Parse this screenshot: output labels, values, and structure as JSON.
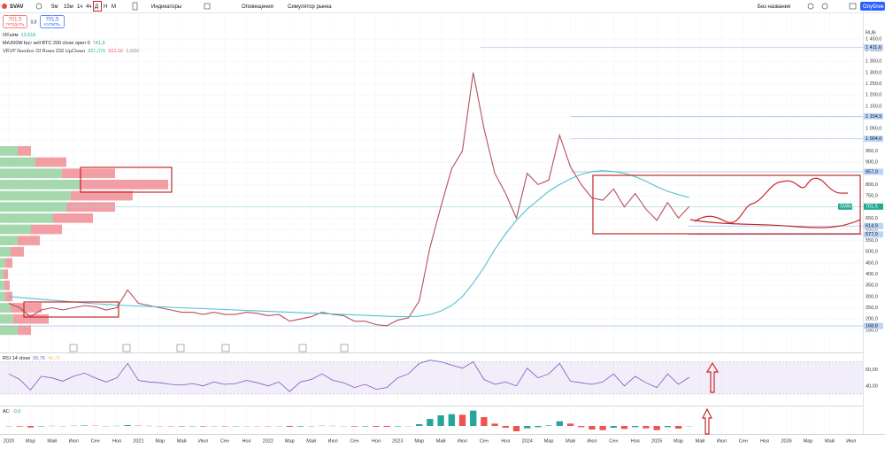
{
  "toolbar": {
    "symbol": "SVAV",
    "intervals": [
      "5м",
      "15м",
      "1ч",
      "4ч",
      "Д",
      "Н",
      "М"
    ],
    "indicators": "Индикаторы",
    "alerts": "Оповещения",
    "replay": "Симулятор рынка",
    "layout_name": "Без названия",
    "publish": "Опублик"
  },
  "order": {
    "sell_price": "701,5",
    "sell_label": "ПРОДАТЬ",
    "spread": "0,0",
    "buy_price": "701,5",
    "buy_label": "КУПИТЬ"
  },
  "legends": [
    {
      "name": "Объём",
      "values": [
        "12,61К"
      ],
      "value_colors": [
        "#26a69a"
      ]
    },
    {
      "name": "MA200W buy sell BTC 200 close open 0",
      "values": [
        "741,9"
      ],
      "value_colors": [
        "#26a69a"
      ]
    },
    {
      "name": "VRVP Number Of Rows 250 Up/Down",
      "values": [
        "825,37К",
        "831,5К",
        "1,66М"
      ],
      "value_colors": [
        "#26a69a",
        "#ef5350",
        "#787b86"
      ]
    },
    {
      "name": "RSI 14 close",
      "values": [
        "50,76",
        "46,76"
      ],
      "value_colors": [
        "#7e57c2",
        "#f7c548"
      ]
    },
    {
      "name": "AO",
      "values": [
        "-0,0"
      ],
      "value_colors": [
        "#26a69a"
      ]
    }
  ],
  "chart_data": [
    {
      "type": "line",
      "currency": "RUB",
      "grid": true,
      "x": [
        "2020-01",
        "2020-02",
        "2020-03",
        "2020-04",
        "2020-05",
        "2020-06",
        "2020-07",
        "2020-08",
        "2020-09",
        "2020-10",
        "2020-11",
        "2020-12",
        "2021-01",
        "2021-02",
        "2021-03",
        "2021-04",
        "2021-05",
        "2021-06",
        "2021-07",
        "2021-08",
        "2021-09",
        "2021-10",
        "2021-11",
        "2021-12",
        "2022-01",
        "2022-02",
        "2022-03",
        "2022-04",
        "2022-05",
        "2022-06",
        "2022-07",
        "2022-08",
        "2022-09",
        "2022-10",
        "2022-11",
        "2022-12",
        "2023-01",
        "2023-02",
        "2023-03",
        "2023-04",
        "2023-05",
        "2023-06",
        "2023-07",
        "2023-08",
        "2023-09",
        "2023-10",
        "2023-11",
        "2023-12",
        "2024-01",
        "2024-02",
        "2024-03",
        "2024-04",
        "2024-05",
        "2024-06",
        "2024-07",
        "2024-08",
        "2024-09",
        "2024-10",
        "2024-11",
        "2024-12",
        "2025-01",
        "2025-02",
        "2025-03",
        "2025-04"
      ],
      "xlim": [
        "2020-01",
        "2026-08"
      ],
      "series": [
        {
          "color": "#b4505a",
          "values": [
            270,
            250,
            210,
            240,
            250,
            240,
            250,
            260,
            255,
            240,
            250,
            330,
            270,
            260,
            250,
            240,
            230,
            230,
            220,
            230,
            220,
            220,
            230,
            225,
            215,
            220,
            190,
            200,
            210,
            230,
            220,
            215,
            190,
            190,
            175,
            170,
            195,
            205,
            280,
            520,
            700,
            870,
            950,
            1300,
            1050,
            850,
            760,
            650,
            850,
            800,
            820,
            1020,
            880,
            800,
            740,
            730,
            780,
            700,
            760,
            690,
            640,
            720,
            650,
            701.5
          ]
        },
        {
          "color": "#4fc3cf",
          "values": [
            300,
            296,
            292,
            288,
            284,
            280,
            276,
            272,
            268,
            265,
            262,
            260,
            258,
            256,
            254,
            252,
            250,
            248,
            246,
            244,
            242,
            240,
            238,
            236,
            234,
            232,
            230,
            228,
            226,
            224,
            222,
            220,
            218,
            216,
            214,
            212,
            210,
            210,
            212,
            220,
            235,
            260,
            300,
            360,
            430,
            510,
            580,
            640,
            690,
            730,
            770,
            800,
            825,
            845,
            858,
            862,
            858,
            850,
            835,
            815,
            790,
            770,
            755,
            741.9
          ]
        }
      ],
      "ylim": [
        90,
        1505
      ],
      "yticks": [
        {
          "value": 1450,
          "label": "1 450,0"
        },
        {
          "value": 1400,
          "label": "1 400,0"
        },
        {
          "value": 1350,
          "label": "1 350,0"
        },
        {
          "value": 1300,
          "label": "1 300,0"
        },
        {
          "value": 1250,
          "label": "1 250,0"
        },
        {
          "value": 1200,
          "label": "1 200,0"
        },
        {
          "value": 1150,
          "label": "1 150,0"
        },
        {
          "value": 1100,
          "label": "1 100,0"
        },
        {
          "value": 1050,
          "label": "1 050,0"
        },
        {
          "value": 1000,
          "label": "1 000,0"
        },
        {
          "value": 950,
          "label": "950,0"
        },
        {
          "value": 900,
          "label": "900,0"
        },
        {
          "value": 850,
          "label": "850,0"
        },
        {
          "value": 800,
          "label": "800,0"
        },
        {
          "value": 750,
          "label": "750,0"
        },
        {
          "value": 700,
          "label": "700,0"
        },
        {
          "value": 650,
          "label": "650,0"
        },
        {
          "value": 600,
          "label": "600,0"
        },
        {
          "value": 550,
          "label": "550,0"
        },
        {
          "value": 500,
          "label": "500,0"
        },
        {
          "value": 450,
          "label": "450,0"
        },
        {
          "value": 400,
          "label": "400,0"
        },
        {
          "value": 350,
          "label": "350,0"
        },
        {
          "value": 300,
          "label": "300,0"
        },
        {
          "value": 250,
          "label": "250,0"
        },
        {
          "value": 200,
          "label": "200,0"
        },
        {
          "value": 150,
          "label": "150,0"
        }
      ],
      "price_labels": [
        {
          "value": 1411.6,
          "label": "1 411,6"
        },
        {
          "value": 1104.5,
          "label": "1 104,5"
        },
        {
          "value": 1004.0,
          "label": "1 004,0"
        },
        {
          "value": 857.0,
          "label": "857,0"
        },
        {
          "value": 701.5,
          "label": "701,5"
        },
        {
          "value": 614.9,
          "label": "614,9"
        },
        {
          "value": 577.0,
          "label": "577,0"
        },
        {
          "value": 168.8,
          "label": "168,8"
        }
      ],
      "last_symbol": "SVAV",
      "xticks": [
        {
          "value": "2020-01",
          "label": "2020"
        },
        {
          "value": "2020-03",
          "label": "Мар"
        },
        {
          "value": "2020-05",
          "label": "Май"
        },
        {
          "value": "2020-07",
          "label": "Июл"
        },
        {
          "value": "2020-09",
          "label": "Сен"
        },
        {
          "value": "2020-11",
          "label": "Ноя"
        },
        {
          "value": "2021-01",
          "label": "2021"
        },
        {
          "value": "2021-03",
          "label": "Мар"
        },
        {
          "value": "2021-05",
          "label": "Май"
        },
        {
          "value": "2021-07",
          "label": "Июл"
        },
        {
          "value": "2021-09",
          "label": "Сен"
        },
        {
          "value": "2021-11",
          "label": "Ноя"
        },
        {
          "value": "2022-01",
          "label": "2022"
        },
        {
          "value": "2022-03",
          "label": "Мар"
        },
        {
          "value": "2022-05",
          "label": "Май"
        },
        {
          "value": "2022-07",
          "label": "Июл"
        },
        {
          "value": "2022-09",
          "label": "Сен"
        },
        {
          "value": "2022-11",
          "label": "Ноя"
        },
        {
          "value": "2023-01",
          "label": "2023"
        },
        {
          "value": "2023-03",
          "label": "Мар"
        },
        {
          "value": "2023-05",
          "label": "Май"
        },
        {
          "value": "2023-07",
          "label": "Июл"
        },
        {
          "value": "2023-09",
          "label": "Сен"
        },
        {
          "value": "2023-11",
          "label": "Ноя"
        },
        {
          "value": "2024-01",
          "label": "2024"
        },
        {
          "value": "2024-03",
          "label": "Мар"
        },
        {
          "value": "2024-05",
          "label": "Май"
        },
        {
          "value": "2024-07",
          "label": "Июл"
        },
        {
          "value": "2024-09",
          "label": "Сен"
        },
        {
          "value": "2024-11",
          "label": "Ноя"
        },
        {
          "value": "2025-01",
          "label": "2025"
        },
        {
          "value": "2025-03",
          "label": "Мар"
        },
        {
          "value": "2025-05",
          "label": "Май"
        },
        {
          "value": "2025-07",
          "label": "Июл"
        },
        {
          "value": "2025-09",
          "label": "Сен"
        },
        {
          "value": "2025-11",
          "label": "Ноя"
        },
        {
          "value": "2026-01",
          "label": "2026"
        },
        {
          "value": "2026-03",
          "label": "Мар"
        },
        {
          "value": "2026-05",
          "label": "Май"
        },
        {
          "value": "2026-07",
          "label": "Июл"
        }
      ],
      "profile": {
        "levels": [
          150,
          200,
          250,
          300,
          350,
          400,
          450,
          500,
          550,
          600,
          650,
          700,
          750,
          800,
          850,
          900,
          950
        ],
        "up": [
          20,
          15,
          12,
          6,
          5,
          4,
          6,
          12,
          20,
          35,
          60,
          75,
          80,
          90,
          70,
          40,
          20
        ],
        "down": [
          15,
          40,
          35,
          8,
          6,
          5,
          8,
          15,
          25,
          35,
          45,
          55,
          70,
          100,
          60,
          35,
          15
        ],
        "up_color": "#8fcf98",
        "down_color": "#f0868e"
      }
    },
    {
      "type": "line",
      "band": [
        30,
        70
      ],
      "ylim": [
        20,
        75
      ],
      "yticks": [
        {
          "value": 60,
          "label": "60,00"
        },
        {
          "value": 40,
          "label": "40,00"
        }
      ],
      "series": [
        {
          "color": "#7e57c2",
          "values": [
            55,
            48,
            35,
            52,
            50,
            46,
            52,
            56,
            50,
            45,
            50,
            68,
            47,
            45,
            44,
            42,
            41,
            43,
            40,
            45,
            42,
            43,
            47,
            44,
            40,
            45,
            33,
            45,
            48,
            55,
            47,
            44,
            38,
            42,
            36,
            38,
            50,
            55,
            68,
            72,
            70,
            66,
            62,
            70,
            48,
            42,
            45,
            40,
            62,
            50,
            55,
            68,
            46,
            44,
            42,
            45,
            55,
            40,
            52,
            44,
            38,
            55,
            42,
            50.76
          ]
        }
      ]
    },
    {
      "type": "bar",
      "ylim": [
        -120,
        300
      ],
      "up_color": "#26a69a",
      "down_color": "#ef5350",
      "values": [
        -5,
        -10,
        -25,
        -8,
        2,
        -3,
        4,
        8,
        5,
        -4,
        3,
        15,
        6,
        2,
        -3,
        -6,
        -8,
        -6,
        -9,
        -5,
        -7,
        -6,
        -2,
        -4,
        -6,
        -3,
        -15,
        -10,
        -5,
        4,
        2,
        -2,
        -10,
        -9,
        -14,
        -16,
        -8,
        0,
        30,
        120,
        180,
        200,
        190,
        260,
        150,
        40,
        -30,
        -90,
        -40,
        -20,
        10,
        80,
        40,
        -20,
        -60,
        -70,
        -30,
        -50,
        -20,
        -40,
        -70,
        -20,
        -45,
        0
      ]
    }
  ]
}
